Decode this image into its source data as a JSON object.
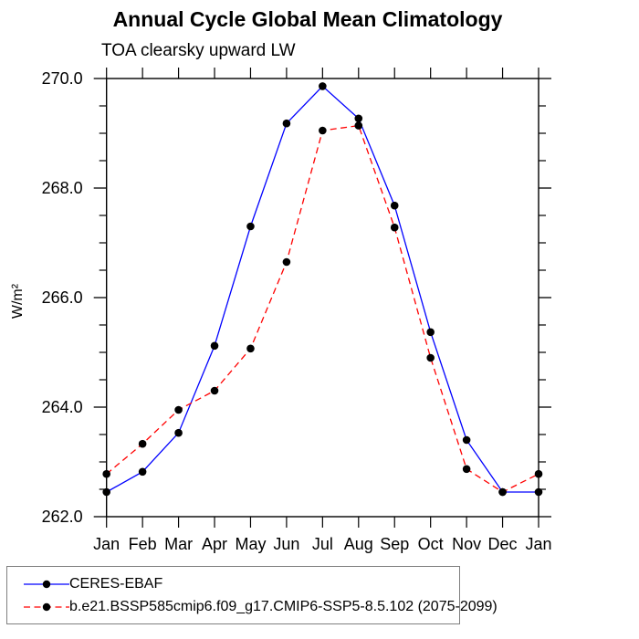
{
  "chart_data": {
    "type": "line",
    "title": "Annual Cycle Global Mean Climatology",
    "subtitle": "TOA clearsky upward LW",
    "ylabel": "W/m²",
    "xlabel": "",
    "x_tick_labels": [
      "Jan",
      "Feb",
      "Mar",
      "Apr",
      "May",
      "Jun",
      "Jul",
      "Aug",
      "Sep",
      "Oct",
      "Nov",
      "Dec",
      "Jan"
    ],
    "y_tick_labels": [
      "262.0",
      "264.0",
      "266.0",
      "268.0",
      "270.0"
    ],
    "ylim": [
      262.0,
      270.0
    ],
    "y_major_step": 2.0,
    "y_minor_step": 0.5,
    "grid": false,
    "frame": "box-with-outward-ticks",
    "legend_position": "bottom-left",
    "axis_color": "#000000",
    "marker_color": "#000000",
    "series": [
      {
        "name": "CERES-EBAF",
        "color": "#0000ff",
        "style": "solid",
        "marker": "circle",
        "marker_color": "#000000",
        "values": [
          262.45,
          262.82,
          263.53,
          265.12,
          267.3,
          269.18,
          269.86,
          269.27,
          267.68,
          265.37,
          263.4,
          262.45,
          262.45
        ]
      },
      {
        "name": "b.e21.BSSP585cmip6.f09_g17.CMIP6-SSP5-8.5.102 (2075-2099)",
        "color": "#ff0000",
        "style": "dashed",
        "marker": "circle",
        "marker_color": "#000000",
        "values": [
          262.78,
          263.33,
          263.95,
          264.3,
          265.07,
          266.65,
          269.05,
          269.14,
          267.28,
          264.9,
          262.87,
          262.45,
          262.78
        ]
      }
    ]
  }
}
